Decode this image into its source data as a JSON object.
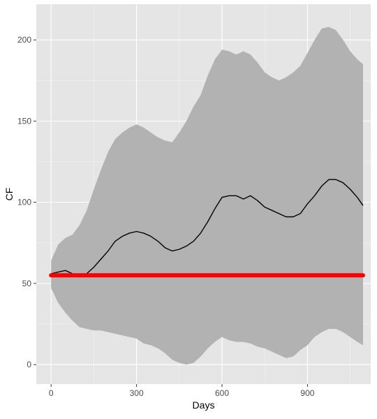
{
  "chart_data": {
    "type": "line",
    "xlabel": "Days",
    "ylabel": "CF",
    "xlim": [
      -52,
      1122
    ],
    "ylim": [
      -12,
      222
    ],
    "x_ticks": [
      0,
      300,
      600,
      900
    ],
    "x_tick_labels": [
      "0",
      "300",
      "600",
      "900"
    ],
    "y_ticks": [
      0,
      50,
      100,
      150,
      200
    ],
    "y_tick_labels": [
      "0",
      "50",
      "100",
      "150",
      "200"
    ],
    "grid": true,
    "legend": "none",
    "colors": {
      "panel": "#e5e5e5",
      "grid": "#ffffff",
      "band": "#b2b2b2",
      "mean_line": "#000000",
      "reference_line": "#ff0000",
      "axis_text": "#4d4d4d",
      "title_text": "#000000"
    },
    "series": [
      {
        "role": "band",
        "x": [
          0,
          25,
          50,
          75,
          100,
          125,
          150,
          175,
          200,
          225,
          250,
          275,
          300,
          325,
          350,
          375,
          400,
          425,
          450,
          475,
          500,
          525,
          550,
          575,
          600,
          625,
          650,
          675,
          700,
          725,
          750,
          775,
          800,
          825,
          850,
          875,
          900,
          925,
          950,
          975,
          1000,
          1025,
          1050,
          1075,
          1095
        ],
        "upper": [
          64,
          74,
          78,
          80,
          86,
          95,
          108,
          120,
          131,
          139,
          143,
          146,
          148,
          146,
          143,
          140,
          138,
          137,
          143,
          150,
          159,
          166,
          178,
          188,
          194,
          193,
          191,
          193,
          191,
          186,
          180,
          177,
          175,
          177,
          180,
          184,
          192,
          200,
          207,
          208,
          206,
          200,
          193,
          188,
          185
        ],
        "lower": [
          47,
          38,
          32,
          27,
          23,
          22,
          21,
          21,
          20,
          19,
          18,
          17,
          16,
          13,
          12,
          10,
          7,
          3,
          1,
          0,
          1,
          5,
          10,
          14,
          17,
          15,
          14,
          14,
          13,
          11,
          10,
          8,
          6,
          4,
          5,
          9,
          12,
          17,
          20,
          22,
          22,
          20,
          17,
          14,
          12
        ]
      },
      {
        "role": "mean",
        "x": [
          0,
          25,
          50,
          75,
          100,
          125,
          150,
          175,
          200,
          225,
          250,
          275,
          300,
          325,
          350,
          375,
          400,
          425,
          450,
          475,
          500,
          525,
          550,
          575,
          600,
          625,
          650,
          675,
          700,
          725,
          750,
          775,
          800,
          825,
          850,
          875,
          900,
          925,
          950,
          975,
          1000,
          1025,
          1050,
          1075,
          1095
        ],
        "values": [
          56,
          57,
          58,
          56,
          54,
          56,
          60,
          65,
          70,
          76,
          79,
          81,
          82,
          81,
          79,
          76,
          72,
          70,
          71,
          73,
          76,
          81,
          88,
          96,
          103,
          104,
          104,
          102,
          104,
          101,
          97,
          95,
          93,
          91,
          91,
          93,
          99,
          104,
          110,
          114,
          114,
          112,
          108,
          103,
          98
        ]
      },
      {
        "role": "reference",
        "x": [
          0,
          1095
        ],
        "values": [
          55,
          55
        ]
      }
    ]
  }
}
